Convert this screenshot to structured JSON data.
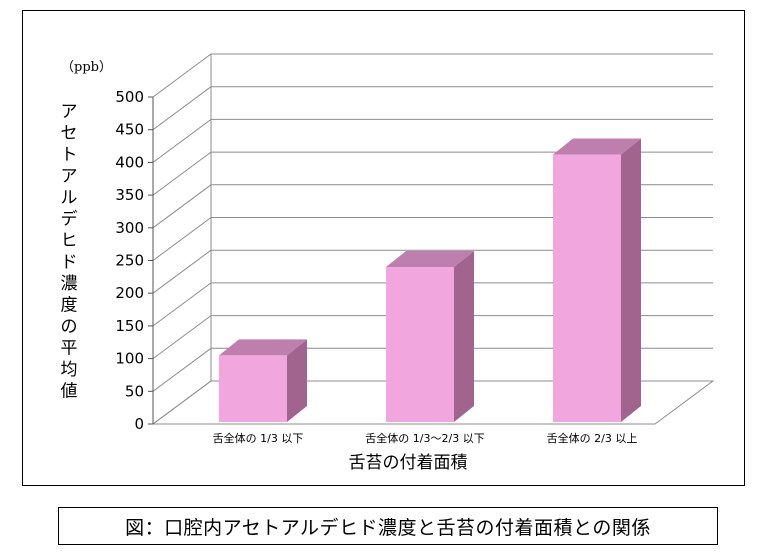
{
  "chart_data": {
    "type": "bar",
    "unit_label": "（ppb）",
    "ylabel": "アセトアルデヒド濃度の平均値",
    "xlabel": "舌苔の付着面積",
    "ylim": [
      0,
      500
    ],
    "yticks": [
      0,
      50,
      100,
      150,
      200,
      250,
      300,
      350,
      400,
      450,
      500
    ],
    "categories": [
      "舌全体の 1/3 以下",
      "舌全体の 1/3〜2/3 以下",
      "舌全体の 2/3 以上"
    ],
    "values": [
      105,
      240,
      412
    ],
    "grid": true,
    "style": "3d-column",
    "colors": {
      "bar_front": "#F2A6DE",
      "bar_side": "#A0648F",
      "bar_top": "#BF7FAE",
      "grid": "#8C8C8C"
    }
  },
  "caption": "図：口腔内アセトアルデヒド濃度と舌苔の付着面積との関係"
}
